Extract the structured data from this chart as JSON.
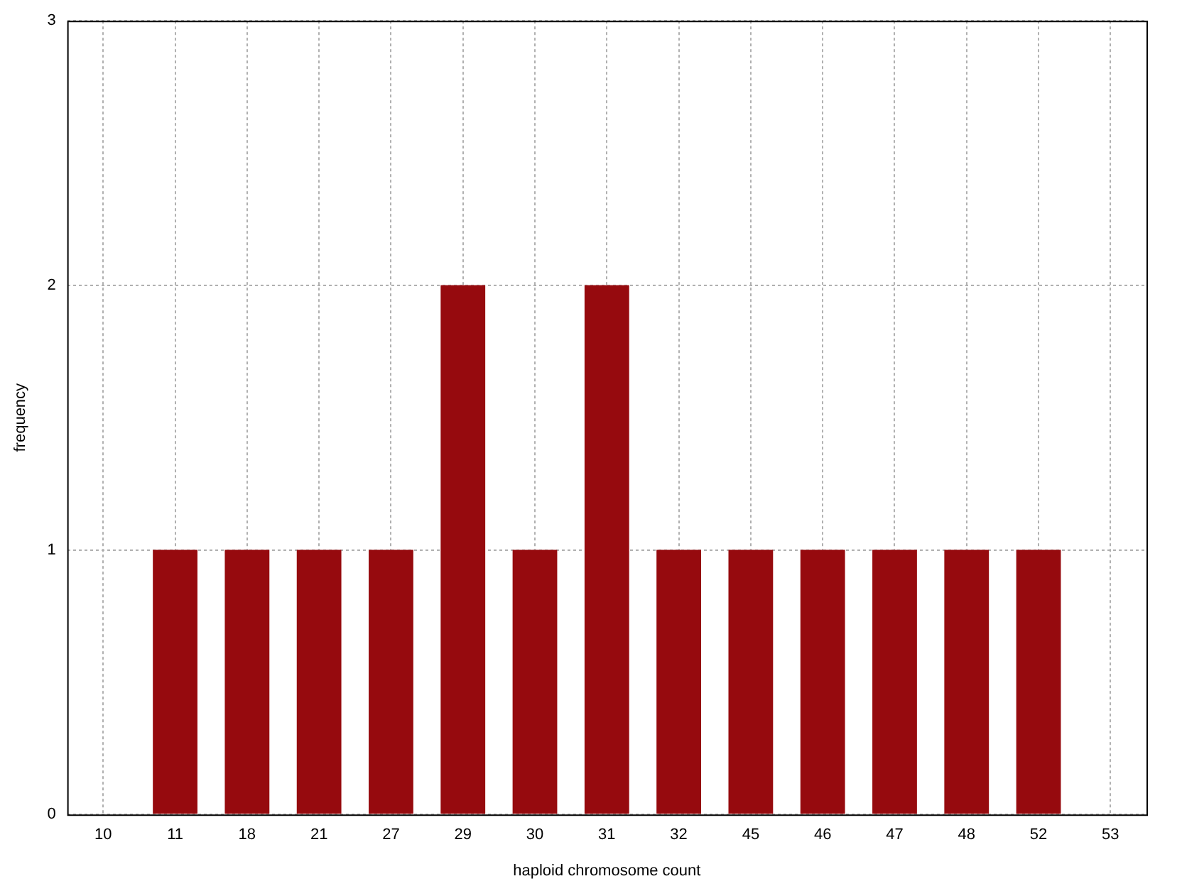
{
  "chart_data": {
    "type": "bar",
    "xlabel": "haploid chromosome count",
    "ylabel": "frequency",
    "categories": [
      "10",
      "11",
      "18",
      "21",
      "27",
      "29",
      "30",
      "31",
      "32",
      "45",
      "46",
      "47",
      "48",
      "52",
      "53"
    ],
    "values": [
      0,
      1,
      1,
      1,
      1,
      2,
      1,
      2,
      1,
      1,
      1,
      1,
      1,
      1,
      0
    ],
    "color": "#960a0e",
    "ylim": [
      0,
      3
    ],
    "yticks": [
      0,
      1,
      2,
      3
    ],
    "grid": true,
    "legend": false
  }
}
